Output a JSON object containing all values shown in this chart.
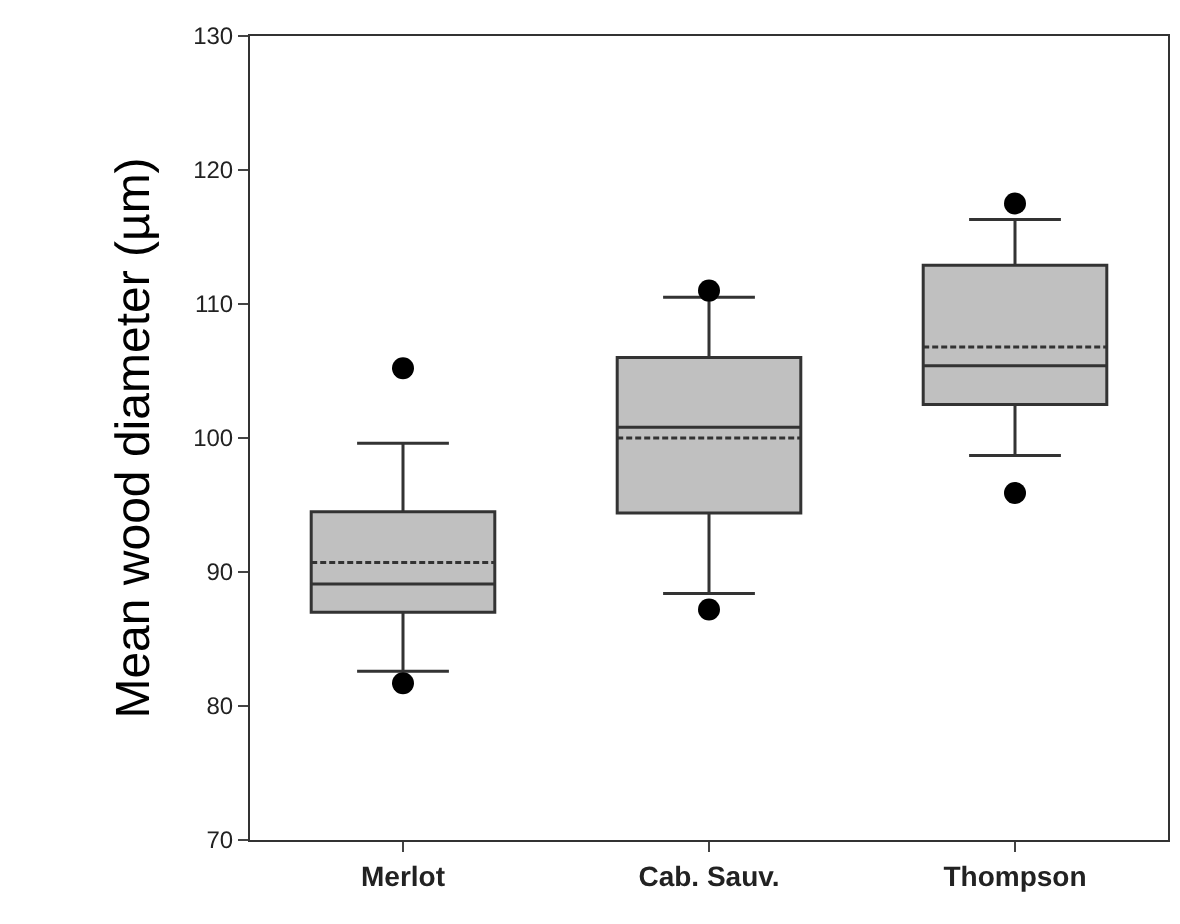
{
  "chart_data": {
    "type": "box",
    "ylabel": "Mean wood diameter (µm)",
    "categories": [
      "Merlot",
      "Cab. Sauv.",
      "Thompson"
    ],
    "boxes": [
      {
        "low": 82.6,
        "q1": 87.0,
        "median": 89.1,
        "q3": 94.5,
        "high": 99.6,
        "mean": 90.7,
        "outliers": [
          105.2,
          81.7
        ]
      },
      {
        "low": 88.4,
        "q1": 94.4,
        "median": 100.8,
        "q3": 106.0,
        "high": 110.5,
        "mean": 100.0,
        "outliers": [
          111.0,
          87.2
        ]
      },
      {
        "low": 98.7,
        "q1": 102.5,
        "median": 105.4,
        "q3": 112.9,
        "high": 116.3,
        "mean": 106.8,
        "outliers": [
          117.5,
          95.9
        ]
      }
    ],
    "ylim": [
      70,
      130
    ],
    "yticks": [
      70,
      80,
      90,
      100,
      110,
      120,
      130
    ],
    "color": "#c0c0c0"
  }
}
